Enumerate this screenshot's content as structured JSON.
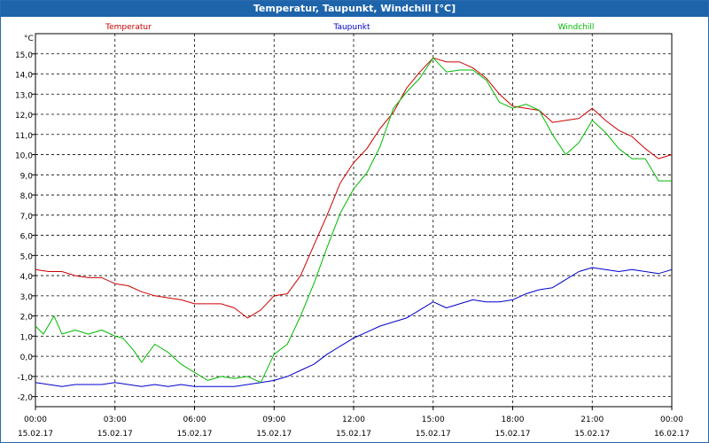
{
  "window": {
    "title": "Temperatur, Taupunkt, Windchill [°C]"
  },
  "chart_data": {
    "type": "line",
    "title": "Temperatur, Taupunkt, Windchill [°C]",
    "ylabel": "°C",
    "xlabel": "",
    "ylim": [
      -2.5,
      16.0
    ],
    "xlim": [
      0,
      24
    ],
    "grid": true,
    "legend": "top",
    "y_ticks": [
      "15,0",
      "14,0",
      "13,0",
      "12,0",
      "11,0",
      "10,0",
      "9,0",
      "8,0",
      "7,0",
      "6,0",
      "5,0",
      "4,0",
      "3,0",
      "2,0",
      "1,0",
      "0,0",
      "-1,0",
      "-2,0"
    ],
    "x_ticks": [
      {
        "time": "00:00",
        "date": "15.02.17"
      },
      {
        "time": "03:00",
        "date": "15.02.17"
      },
      {
        "time": "06:00",
        "date": "15.02.17"
      },
      {
        "time": "09:00",
        "date": "15.02.17"
      },
      {
        "time": "12:00",
        "date": "15.02.17"
      },
      {
        "time": "15:00",
        "date": "15.02.17"
      },
      {
        "time": "18:00",
        "date": "15.02.17"
      },
      {
        "time": "21:00",
        "date": "15.02.17"
      },
      {
        "time": "00:00",
        "date": "16.02.17"
      }
    ],
    "series": [
      {
        "name": "Temperatur",
        "color": "#cc0000",
        "points": [
          [
            0,
            4.3
          ],
          [
            0.5,
            4.2
          ],
          [
            1,
            4.2
          ],
          [
            1.5,
            4.0
          ],
          [
            2,
            3.9
          ],
          [
            2.5,
            3.9
          ],
          [
            3,
            3.6
          ],
          [
            3.5,
            3.5
          ],
          [
            4,
            3.2
          ],
          [
            4.5,
            3.0
          ],
          [
            5,
            2.9
          ],
          [
            5.5,
            2.8
          ],
          [
            6,
            2.6
          ],
          [
            6.5,
            2.6
          ],
          [
            7,
            2.6
          ],
          [
            7.5,
            2.4
          ],
          [
            8,
            1.9
          ],
          [
            8.5,
            2.3
          ],
          [
            9,
            3.0
          ],
          [
            9.5,
            3.1
          ],
          [
            10,
            4.0
          ],
          [
            10.5,
            5.5
          ],
          [
            11,
            7.0
          ],
          [
            11.5,
            8.6
          ],
          [
            12,
            9.6
          ],
          [
            12.5,
            10.3
          ],
          [
            13,
            11.3
          ],
          [
            13.5,
            12.1
          ],
          [
            14,
            13.3
          ],
          [
            14.5,
            14.1
          ],
          [
            15,
            14.8
          ],
          [
            15.5,
            14.6
          ],
          [
            16,
            14.6
          ],
          [
            16.5,
            14.3
          ],
          [
            17,
            13.8
          ],
          [
            17.5,
            13.0
          ],
          [
            18,
            12.4
          ],
          [
            18.5,
            12.3
          ],
          [
            19,
            12.2
          ],
          [
            19.5,
            11.6
          ],
          [
            20,
            11.7
          ],
          [
            20.5,
            11.8
          ],
          [
            21,
            12.3
          ],
          [
            21.5,
            11.7
          ],
          [
            22,
            11.2
          ],
          [
            22.5,
            10.9
          ],
          [
            23,
            10.3
          ],
          [
            23.5,
            9.8
          ],
          [
            24,
            10.0
          ]
        ]
      },
      {
        "name": "Taupunkt",
        "color": "#0000cc",
        "points": [
          [
            0,
            -1.3
          ],
          [
            0.5,
            -1.4
          ],
          [
            1,
            -1.5
          ],
          [
            1.5,
            -1.4
          ],
          [
            2,
            -1.4
          ],
          [
            2.5,
            -1.4
          ],
          [
            3,
            -1.3
          ],
          [
            3.5,
            -1.4
          ],
          [
            4,
            -1.5
          ],
          [
            4.5,
            -1.4
          ],
          [
            5,
            -1.5
          ],
          [
            5.5,
            -1.4
          ],
          [
            6,
            -1.5
          ],
          [
            6.5,
            -1.5
          ],
          [
            7,
            -1.5
          ],
          [
            7.5,
            -1.5
          ],
          [
            8,
            -1.4
          ],
          [
            8.5,
            -1.3
          ],
          [
            9,
            -1.2
          ],
          [
            9.5,
            -1.0
          ],
          [
            10,
            -0.7
          ],
          [
            10.5,
            -0.4
          ],
          [
            11,
            0.1
          ],
          [
            11.5,
            0.5
          ],
          [
            12,
            0.9
          ],
          [
            12.5,
            1.2
          ],
          [
            13,
            1.5
          ],
          [
            13.5,
            1.7
          ],
          [
            14,
            1.9
          ],
          [
            14.5,
            2.3
          ],
          [
            15,
            2.7
          ],
          [
            15.5,
            2.4
          ],
          [
            16,
            2.6
          ],
          [
            16.5,
            2.8
          ],
          [
            17,
            2.7
          ],
          [
            17.5,
            2.7
          ],
          [
            18,
            2.8
          ],
          [
            18.5,
            3.1
          ],
          [
            19,
            3.3
          ],
          [
            19.5,
            3.4
          ],
          [
            20,
            3.8
          ],
          [
            20.5,
            4.2
          ],
          [
            21,
            4.4
          ],
          [
            21.5,
            4.3
          ],
          [
            22,
            4.2
          ],
          [
            22.5,
            4.3
          ],
          [
            23,
            4.2
          ],
          [
            23.5,
            4.1
          ],
          [
            24,
            4.3
          ]
        ]
      },
      {
        "name": "Windchill",
        "color": "#00bb00",
        "points": [
          [
            0,
            1.5
          ],
          [
            0.3,
            1.1
          ],
          [
            0.7,
            2.0
          ],
          [
            1,
            1.1
          ],
          [
            1.5,
            1.3
          ],
          [
            2,
            1.1
          ],
          [
            2.5,
            1.3
          ],
          [
            3,
            1.0
          ],
          [
            3.3,
            0.9
          ],
          [
            3.7,
            0.3
          ],
          [
            4,
            -0.3
          ],
          [
            4.5,
            0.6
          ],
          [
            5,
            0.2
          ],
          [
            5.5,
            -0.4
          ],
          [
            6,
            -0.8
          ],
          [
            6.5,
            -1.2
          ],
          [
            7,
            -1.0
          ],
          [
            7.5,
            -1.1
          ],
          [
            8,
            -1.0
          ],
          [
            8.5,
            -1.3
          ],
          [
            9,
            0.1
          ],
          [
            9.5,
            0.6
          ],
          [
            10,
            2.0
          ],
          [
            10.5,
            3.6
          ],
          [
            11,
            5.4
          ],
          [
            11.5,
            7.1
          ],
          [
            12,
            8.3
          ],
          [
            12.5,
            9.1
          ],
          [
            13,
            10.4
          ],
          [
            13.5,
            12.3
          ],
          [
            14,
            13.1
          ],
          [
            14.5,
            13.8
          ],
          [
            15,
            14.8
          ],
          [
            15.5,
            14.1
          ],
          [
            16,
            14.2
          ],
          [
            16.5,
            14.2
          ],
          [
            17,
            13.7
          ],
          [
            17.5,
            12.6
          ],
          [
            18,
            12.3
          ],
          [
            18.5,
            12.5
          ],
          [
            19,
            12.2
          ],
          [
            19.5,
            11.0
          ],
          [
            20,
            10.0
          ],
          [
            20.5,
            10.6
          ],
          [
            21,
            11.7
          ],
          [
            21.5,
            11.1
          ],
          [
            22,
            10.3
          ],
          [
            22.5,
            9.8
          ],
          [
            23,
            9.8
          ],
          [
            23.5,
            8.7
          ],
          [
            24,
            8.7
          ]
        ]
      }
    ]
  }
}
